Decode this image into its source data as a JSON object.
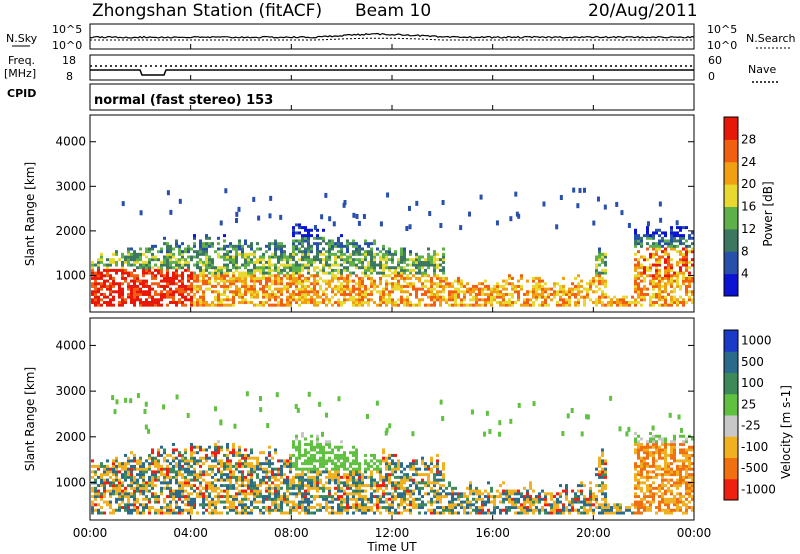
{
  "header": {
    "title": "Zhongshan Station (fitACF)",
    "beam": "Beam 10",
    "date": "20/Aug/2011",
    "cpid_label": "CPID",
    "cpid_value": "normal (fast stereo) 153"
  },
  "noise_panel": {
    "left_label": "N.Sky",
    "right_label": "N.Search",
    "ticks_left": [
      "10^5",
      "10^0"
    ],
    "ticks_right": [
      "10^5",
      "10^0"
    ]
  },
  "freq_panel": {
    "left_label_line1": "Freq.",
    "left_label_line2": "[MHz]",
    "right_label": "Nave",
    "ticks_left": [
      "18",
      "8"
    ],
    "ticks_right": [
      "60",
      "0"
    ]
  },
  "chart_data": [
    {
      "type": "heatmap",
      "quantity": "Power",
      "ylabel": "Slant Range [km]",
      "xlabel": "Time UT",
      "x_ticks": [
        "00:00",
        "04:00",
        "08:00",
        "12:00",
        "16:00",
        "20:00",
        "00:00"
      ],
      "y_ticks": [
        1000,
        2000,
        3000,
        4000
      ],
      "ylim": [
        180,
        4600
      ],
      "colorbar_label": "Power [dB]",
      "colorbar_ticks": [
        4,
        8,
        12,
        16,
        20,
        24,
        28
      ],
      "colorbar_colors": [
        "#0a14d2",
        "#2850aa",
        "#3c7860",
        "#5fb04a",
        "#e8d830",
        "#f0a010",
        "#f06010",
        "#e81808"
      ]
    },
    {
      "type": "heatmap",
      "quantity": "Velocity",
      "ylabel": "Slant Range [km]",
      "xlabel": "Time UT",
      "x_ticks": [
        "00:00",
        "04:00",
        "08:00",
        "12:00",
        "16:00",
        "20:00",
        "00:00"
      ],
      "y_ticks": [
        1000,
        2000,
        3000,
        4000
      ],
      "ylim": [
        180,
        4600
      ],
      "colorbar_label": "Velocity [m s-1]",
      "colorbar_ticks": [
        "1000",
        "500",
        "100",
        "25",
        "-25",
        "-100",
        "-500",
        "-1000"
      ],
      "colorbar_colors": [
        "#1a3ac8",
        "#2a6a8a",
        "#3c8a5a",
        "#60c040",
        "#c8c8c8",
        "#f0b020",
        "#f07010",
        "#f02010"
      ]
    }
  ]
}
